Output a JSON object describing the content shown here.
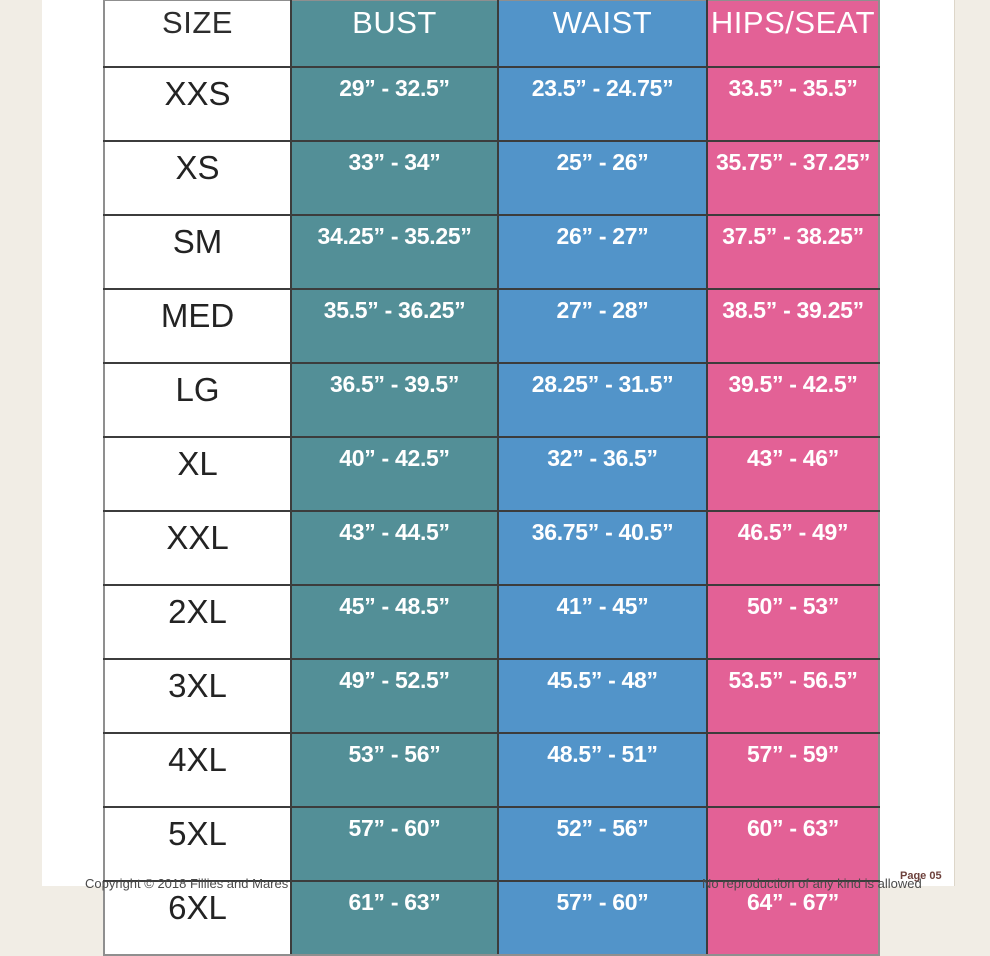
{
  "size_chart": {
    "headers": {
      "size": "SIZE",
      "bust": "BUST",
      "waist": "WAIST",
      "hips": "HIPS/SEAT"
    },
    "rows": [
      {
        "size": "XXS",
        "bust": "29” - 32.5”",
        "waist": "23.5” - 24.75”",
        "hips": "33.5” - 35.5”"
      },
      {
        "size": "XS",
        "bust": "33” - 34”",
        "waist": "25” - 26”",
        "hips": "35.75” - 37.25”"
      },
      {
        "size": "SM",
        "bust": "34.25” - 35.25”",
        "waist": "26” - 27”",
        "hips": "37.5” - 38.25”"
      },
      {
        "size": "MED",
        "bust": "35.5” - 36.25”",
        "waist": "27” - 28”",
        "hips": "38.5” - 39.25”"
      },
      {
        "size": "LG",
        "bust": "36.5” - 39.5”",
        "waist": "28.25” - 31.5”",
        "hips": "39.5” - 42.5”"
      },
      {
        "size": "XL",
        "bust": "40” - 42.5”",
        "waist": "32” - 36.5”",
        "hips": "43” - 46”"
      },
      {
        "size": "XXL",
        "bust": "43” - 44.5”",
        "waist": "36.75” - 40.5”",
        "hips": "46.5” - 49”"
      },
      {
        "size": "2XL",
        "bust": "45” - 48.5”",
        "waist": "41” - 45”",
        "hips": "50” - 53”"
      },
      {
        "size": "3XL",
        "bust": "49” - 52.5”",
        "waist": "45.5” - 48”",
        "hips": "53.5” - 56.5”"
      },
      {
        "size": "4XL",
        "bust": "53” - 56”",
        "waist": "48.5” - 51”",
        "hips": "57” - 59”"
      },
      {
        "size": "5XL",
        "bust": "57” - 60”",
        "waist": "52” - 56”",
        "hips": "60” - 63”"
      },
      {
        "size": "6XL",
        "bust": "61” - 63”",
        "waist": "57” - 60”",
        "hips": "64” - 67”"
      }
    ],
    "colors": {
      "bust": "#538f97",
      "waist": "#5294c9",
      "hips": "#e36196",
      "page_background": "#f1ede5"
    }
  },
  "footer": {
    "copyright": "Copyright © 2018 Fillies and Mares",
    "notice": "No reproduction of any kind is allowed",
    "page_number": "Page 05"
  }
}
